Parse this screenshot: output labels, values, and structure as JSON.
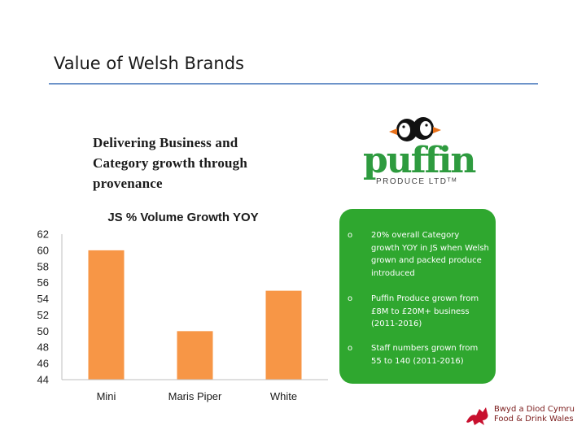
{
  "slide": {
    "title": "Value of Welsh Brands",
    "subtitle": "Delivering Business and Category growth through provenance"
  },
  "logo": {
    "word": "puffin",
    "tagline": "PRODUCE LTDᵀᴹ",
    "icon": "puffin-bird-icon",
    "color": "#2e9b3f"
  },
  "callout": {
    "color": "#2fa72f",
    "bullets": [
      {
        "mark": "o",
        "text": "20% overall Category growth YOY in JS when Welsh grown and packed produce introduced"
      },
      {
        "mark": "o",
        "text": "Puffin Produce grown from £8M to £20M+ business (2011-2016)"
      },
      {
        "mark": "o",
        "text": "Staff numbers grown from 55 to 140 (2011-2016)"
      }
    ]
  },
  "footer": {
    "line1": "Bwyd a Diod Cymru",
    "line2": "Food & Drink Wales",
    "icon": "welsh-dragon-icon"
  },
  "chart_data": {
    "type": "bar",
    "title": "JS % Volume Growth YOY",
    "categories": [
      "Mini",
      "Maris Piper",
      "White"
    ],
    "values": [
      60,
      50,
      55
    ],
    "ylim": [
      44,
      62
    ],
    "yticks": [
      44,
      46,
      48,
      50,
      52,
      54,
      56,
      58,
      60,
      62
    ],
    "xlabel": "",
    "ylabel": "",
    "grid": false,
    "bar_color": "#f79646"
  }
}
